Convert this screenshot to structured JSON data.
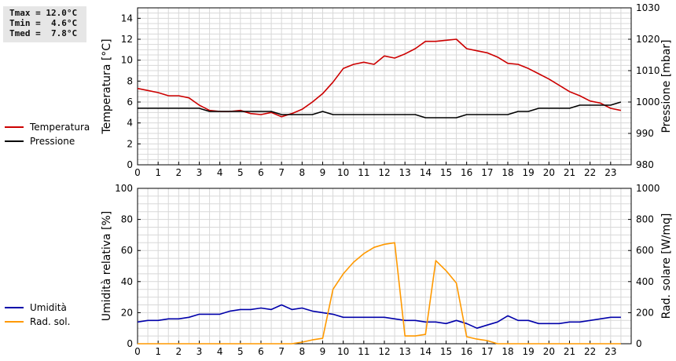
{
  "stats": {
    "tmax": "Tmax = 12.0°C",
    "tmin": "Tmin =  4.6°C",
    "tmed": "Tmed =  7.8°C"
  },
  "legend_top": [
    {
      "label": "Temperatura",
      "color": "#cc0000"
    },
    {
      "label": "Pressione",
      "color": "#000000"
    }
  ],
  "legend_bottom": [
    {
      "label": "Umidità",
      "color": "#0000aa"
    },
    {
      "label": "Rad. sol.",
      "color": "#ff9900"
    }
  ],
  "chart_data": [
    {
      "type": "line",
      "ylabel": "Temperatura [°C]",
      "y2label": "Pressione [mbar]",
      "xlim": [
        0,
        24
      ],
      "ylim": [
        0,
        15
      ],
      "y2lim": [
        980,
        1030
      ],
      "xticks": [
        "0",
        "1",
        "2",
        "3",
        "4",
        "5",
        "6",
        "7",
        "8",
        "9",
        "10",
        "11",
        "12",
        "13",
        "14",
        "15",
        "16",
        "17",
        "18",
        "19",
        "20",
        "21",
        "22",
        "23"
      ],
      "yticks": [
        "0",
        "2",
        "4",
        "6",
        "8",
        "10",
        "12",
        "14"
      ],
      "y2ticks": [
        "980",
        "990",
        "1000",
        "1010",
        "1020",
        "1030"
      ],
      "grid": true,
      "series": [
        {
          "name": "Temperatura",
          "axis": "left",
          "color": "#cc0000",
          "x": [
            0,
            0.5,
            1,
            1.5,
            2,
            2.5,
            3,
            3.5,
            4,
            4.5,
            5,
            5.5,
            6,
            6.5,
            7,
            7.5,
            8,
            8.5,
            9,
            9.5,
            10,
            10.5,
            11,
            11.5,
            12,
            12.5,
            13,
            13.5,
            14,
            14.5,
            15,
            15.5,
            16,
            16.5,
            17,
            17.5,
            18,
            18.5,
            19,
            19.5,
            20,
            20.5,
            21,
            21.5,
            22,
            22.5,
            23,
            23.5
          ],
          "y": [
            7.3,
            7.1,
            6.9,
            6.6,
            6.6,
            6.4,
            5.7,
            5.2,
            5.1,
            5.1,
            5.2,
            4.9,
            4.8,
            5.0,
            4.6,
            4.9,
            5.3,
            6.0,
            6.8,
            7.9,
            9.2,
            9.6,
            9.8,
            9.6,
            10.4,
            10.2,
            10.6,
            11.1,
            11.8,
            11.8,
            11.9,
            12.0,
            11.1,
            10.9,
            10.7,
            10.3,
            9.7,
            9.6,
            9.2,
            8.7,
            8.2,
            7.6,
            7.0,
            6.6,
            6.1,
            5.9,
            5.4,
            5.2
          ]
        },
        {
          "name": "Pressione",
          "axis": "right",
          "color": "#000000",
          "x": [
            0,
            3,
            3.5,
            4,
            6.5,
            7,
            8.5,
            9,
            9.5,
            13.5,
            14,
            15.5,
            16,
            18,
            18.5,
            19,
            19.5,
            21,
            21.5,
            23,
            23.5
          ],
          "y": [
            998,
            998,
            997,
            997,
            997,
            996,
            996,
            997,
            996,
            996,
            995,
            995,
            996,
            996,
            997,
            997,
            998,
            998,
            999,
            999,
            1000
          ]
        }
      ]
    },
    {
      "type": "line",
      "ylabel": "Umidità relativa [%]",
      "y2label": "Rad. solare [W/mq]",
      "xlim": [
        0,
        24
      ],
      "ylim": [
        0,
        100
      ],
      "y2lim": [
        0,
        1000
      ],
      "xticks": [
        "0",
        "1",
        "2",
        "3",
        "4",
        "5",
        "6",
        "7",
        "8",
        "9",
        "10",
        "11",
        "12",
        "13",
        "14",
        "15",
        "16",
        "17",
        "18",
        "19",
        "20",
        "21",
        "22",
        "23"
      ],
      "yticks": [
        "0",
        "20",
        "40",
        "60",
        "80",
        "100"
      ],
      "y2ticks": [
        "0",
        "200",
        "400",
        "600",
        "800",
        "1000"
      ],
      "grid": true,
      "series": [
        {
          "name": "Umidità",
          "axis": "left",
          "color": "#0000aa",
          "x": [
            0,
            0.5,
            1,
            1.5,
            2,
            2.5,
            3,
            3.5,
            4,
            4.5,
            5,
            5.5,
            6,
            6.5,
            7,
            7.5,
            8,
            8.5,
            9,
            9.5,
            10,
            10.5,
            11,
            11.5,
            12,
            12.5,
            13,
            13.5,
            14,
            14.5,
            15,
            15.5,
            16,
            16.5,
            17,
            17.5,
            18,
            18.5,
            19,
            19.5,
            20,
            20.5,
            21,
            21.5,
            22,
            22.5,
            23,
            23.5
          ],
          "y": [
            14,
            15,
            15,
            16,
            16,
            17,
            19,
            19,
            19,
            21,
            22,
            22,
            23,
            22,
            25,
            22,
            23,
            21,
            20,
            19,
            17,
            17,
            17,
            17,
            17,
            16,
            15,
            15,
            14,
            14,
            13,
            15,
            13,
            10,
            12,
            14,
            18,
            15,
            15,
            13,
            13,
            13,
            14,
            14,
            15,
            16,
            17,
            17
          ]
        },
        {
          "name": "Rad. sol.",
          "axis": "right",
          "color": "#ff9900",
          "x": [
            0,
            7.5,
            8,
            8.5,
            9,
            9.5,
            10,
            10.5,
            11,
            11.5,
            12,
            12.5,
            13,
            13.5,
            14,
            14.5,
            15,
            15.5,
            16,
            16.5,
            17,
            17.5,
            18,
            23.5
          ],
          "y": [
            0,
            0,
            10,
            25,
            35,
            350,
            450,
            525,
            580,
            620,
            640,
            650,
            50,
            50,
            60,
            535,
            470,
            390,
            45,
            30,
            20,
            0,
            0,
            0
          ]
        }
      ]
    }
  ]
}
